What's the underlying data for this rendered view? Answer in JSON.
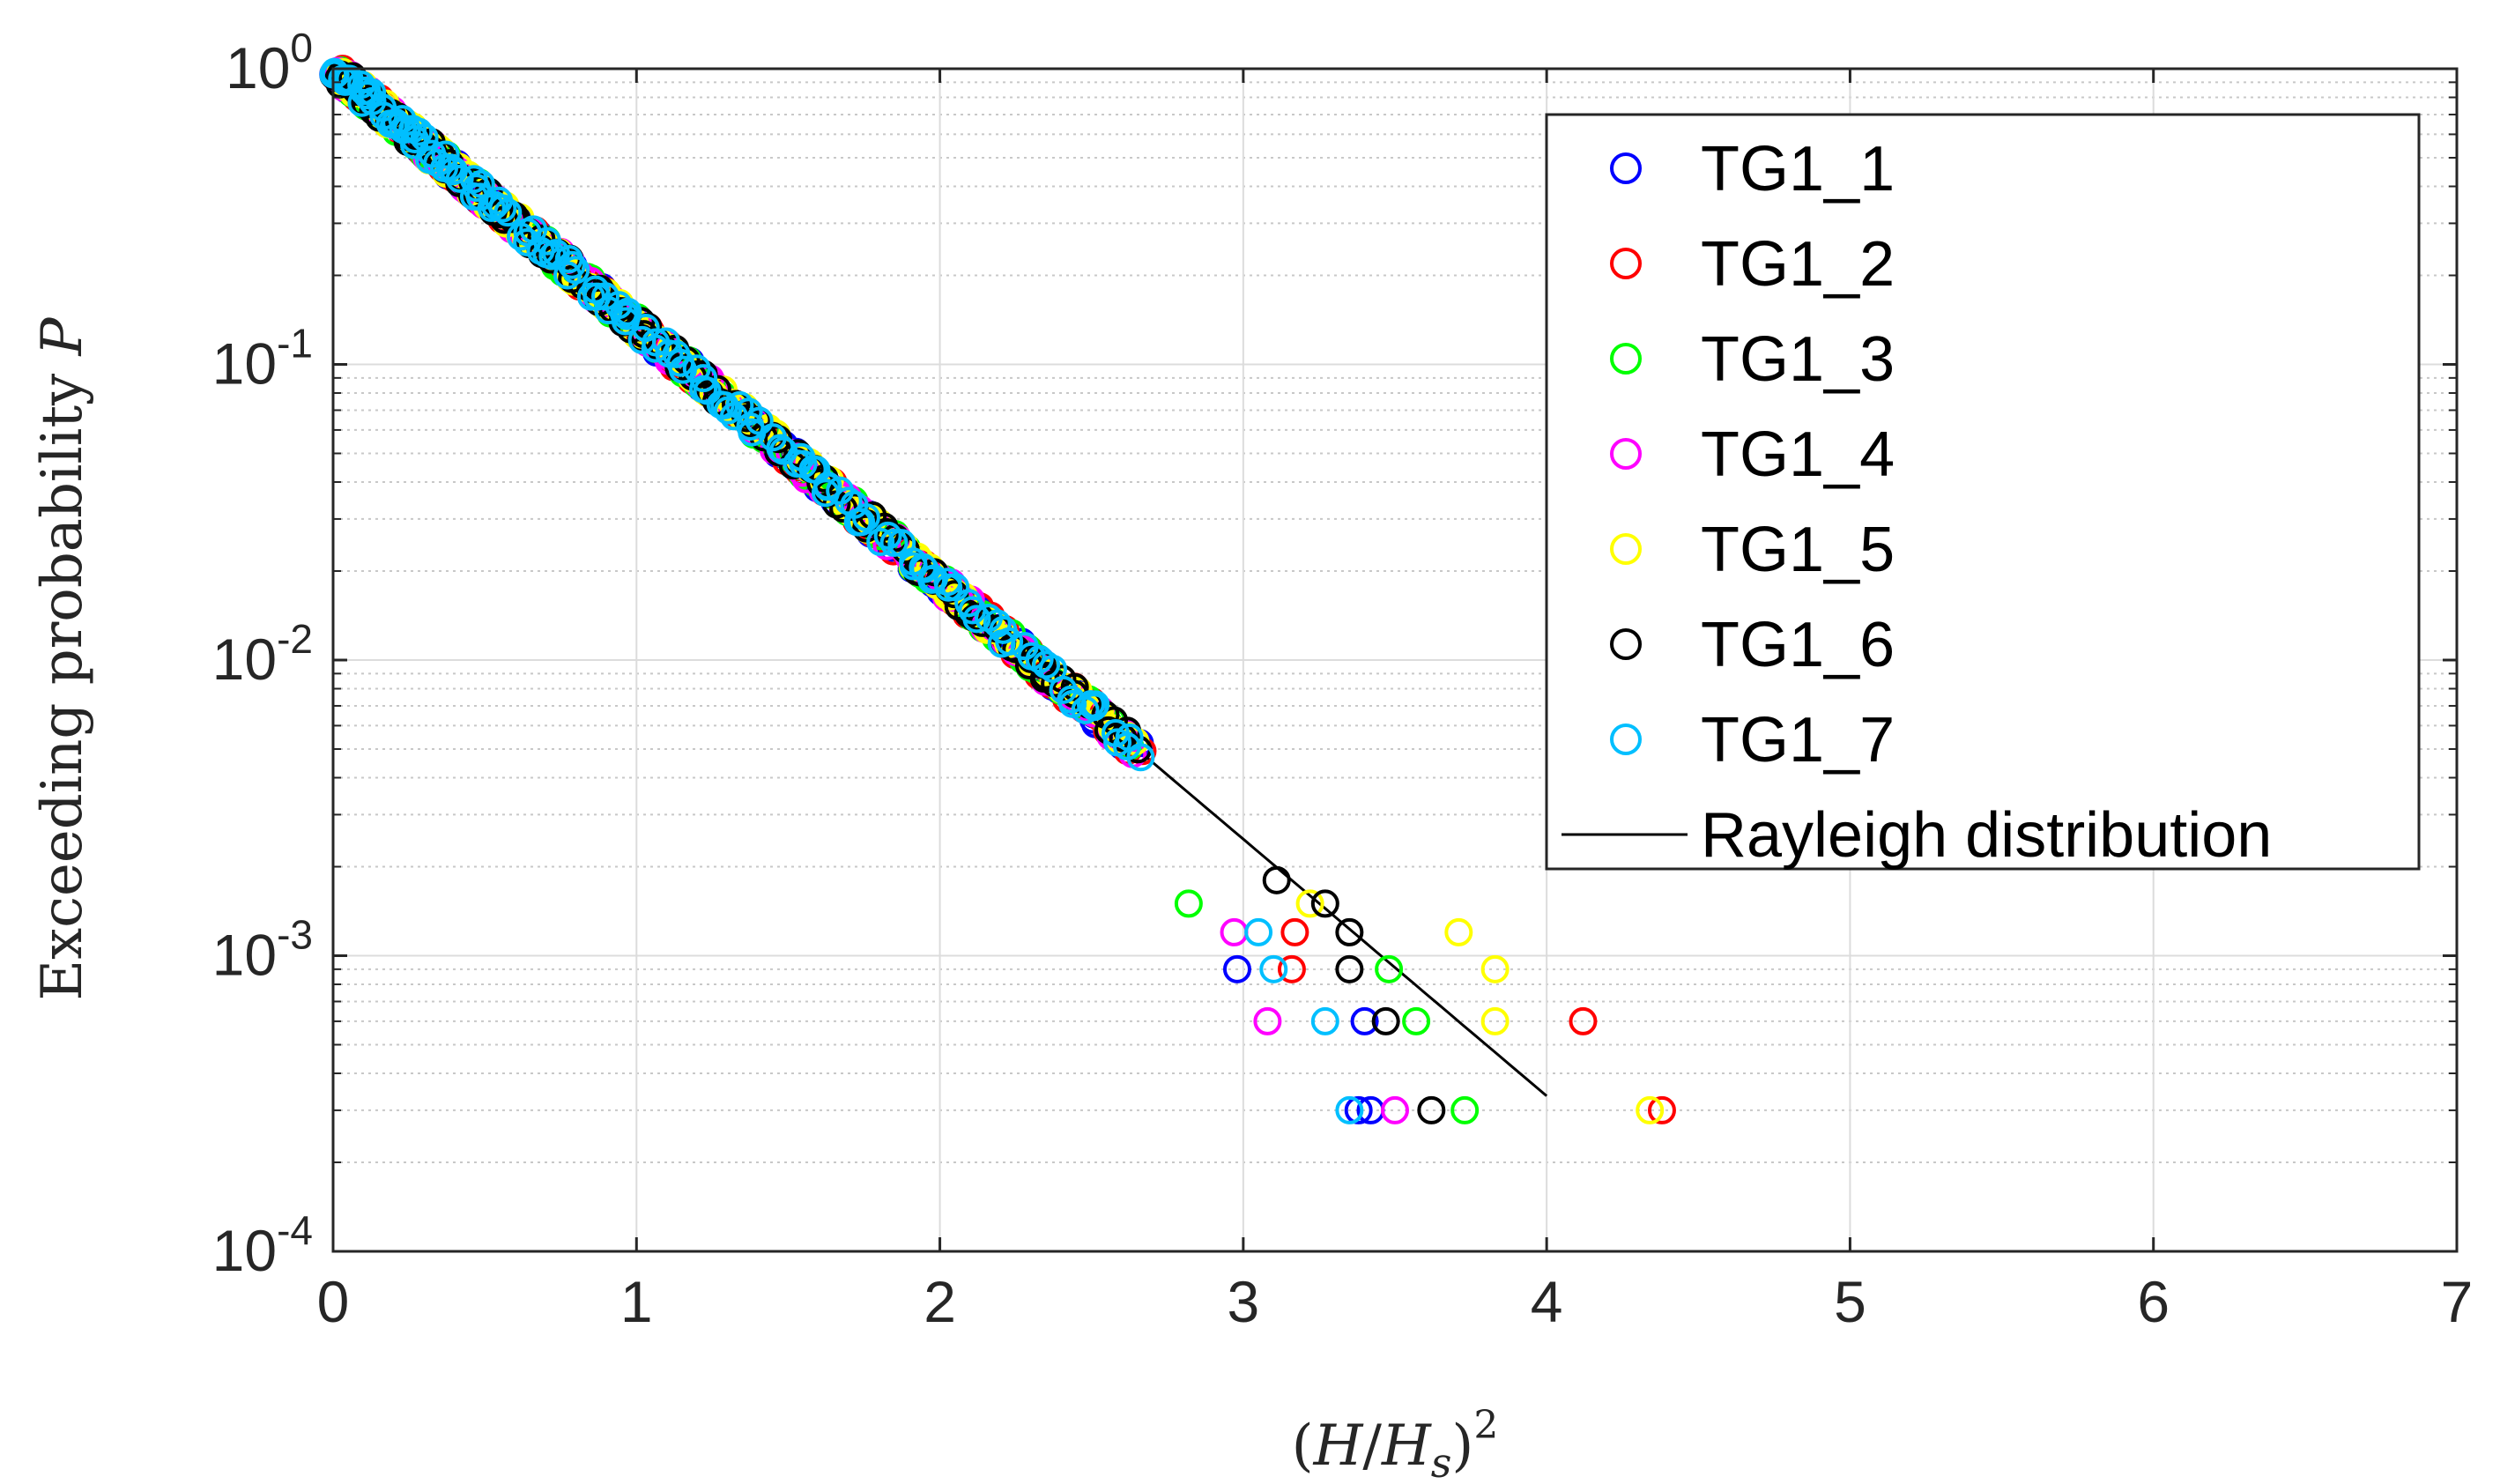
{
  "chart_data": {
    "type": "scatter",
    "title": "",
    "xlabel": "(H/H_s)^2",
    "ylabel": "Exceeding probability P",
    "xlim": [
      0,
      7
    ],
    "ylim_log10": [
      -4,
      0
    ],
    "yscale": "log",
    "x_ticks": [
      0,
      1,
      2,
      3,
      4,
      5,
      6,
      7
    ],
    "x_tick_labels": [
      "0",
      "1",
      "2",
      "3",
      "4",
      "5",
      "6",
      "7"
    ],
    "y_ticks": [
      {
        "base": "10",
        "exp": "0"
      },
      {
        "base": "10",
        "exp": "-1"
      },
      {
        "base": "10",
        "exp": "-2"
      },
      {
        "base": "10",
        "exp": "-3"
      },
      {
        "base": "10",
        "exp": "-4"
      }
    ],
    "grid": true,
    "legend_position": "top-right",
    "series": [
      {
        "name": "TG1_1",
        "color": "#0000ff",
        "tail": [
          [
            2.98,
            0.0009
          ],
          [
            3.4,
            0.0006
          ],
          [
            3.42,
            0.0003
          ],
          [
            3.38,
            0.0003
          ]
        ]
      },
      {
        "name": "TG1_2",
        "color": "#ff0000",
        "tail": [
          [
            3.16,
            0.0009
          ],
          [
            3.17,
            0.0012
          ],
          [
            4.12,
            0.0006
          ],
          [
            4.38,
            0.0003
          ]
        ]
      },
      {
        "name": "TG1_3",
        "color": "#00ff00",
        "tail": [
          [
            2.82,
            0.0015
          ],
          [
            3.48,
            0.0009
          ],
          [
            3.57,
            0.0006
          ],
          [
            3.73,
            0.0003
          ]
        ]
      },
      {
        "name": "TG1_4",
        "color": "#ff00ff",
        "tail": [
          [
            2.97,
            0.0012
          ],
          [
            3.08,
            0.0006
          ],
          [
            3.5,
            0.0003
          ]
        ]
      },
      {
        "name": "TG1_5",
        "color": "#ffff00",
        "tail": [
          [
            3.22,
            0.0015
          ],
          [
            3.71,
            0.0012
          ],
          [
            3.83,
            0.0009
          ],
          [
            3.83,
            0.0006
          ],
          [
            4.34,
            0.0003
          ]
        ]
      },
      {
        "name": "TG1_6",
        "color": "#000000",
        "tail": [
          [
            3.11,
            0.0018
          ],
          [
            3.27,
            0.0015
          ],
          [
            3.35,
            0.0012
          ],
          [
            3.35,
            0.0009
          ],
          [
            3.47,
            0.0006
          ],
          [
            3.62,
            0.0003
          ]
        ]
      },
      {
        "name": "TG1_7",
        "color": "#00bfff",
        "tail": [
          [
            3.05,
            0.0012
          ],
          [
            3.1,
            0.0009
          ],
          [
            3.27,
            0.0006
          ],
          [
            3.35,
            0.0003
          ]
        ]
      }
    ],
    "rayleigh": {
      "name": "Rayleigh distribution",
      "color": "#000000",
      "formula": "P = exp(-2 x)",
      "x_range": [
        0,
        4
      ]
    }
  }
}
